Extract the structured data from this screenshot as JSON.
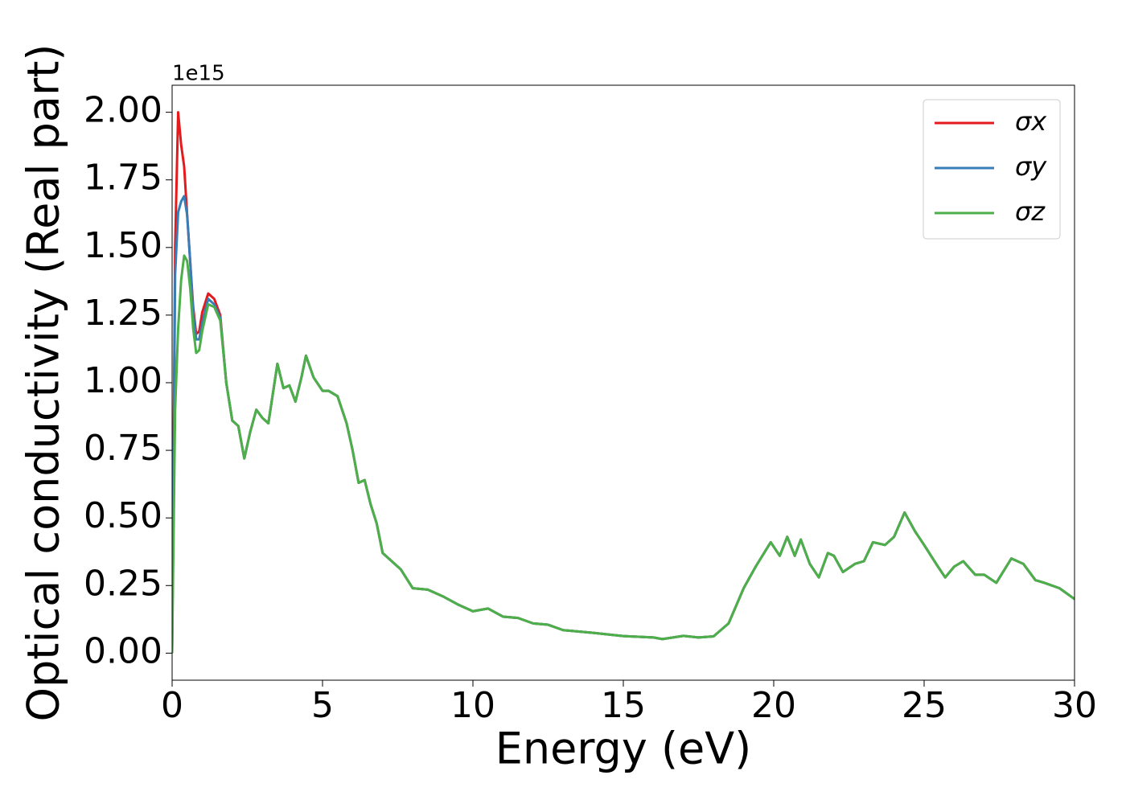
{
  "chart_data": {
    "type": "line",
    "x_label": "Energy (eV)",
    "y_label": "Optical conductivity (Real part)",
    "y_offset_label": "1e15",
    "x": [
      0,
      0.1,
      0.2,
      0.3,
      0.4,
      0.5,
      0.6,
      0.7,
      0.8,
      0.9,
      1.0,
      1.2,
      1.4,
      1.6,
      1.8,
      2.0,
      2.2,
      2.4,
      2.6,
      2.8,
      3.0,
      3.2,
      3.5,
      3.7,
      3.9,
      4.1,
      4.3,
      4.45,
      4.7,
      5.0,
      5.2,
      5.5,
      5.8,
      6.0,
      6.2,
      6.4,
      6.6,
      6.8,
      7.0,
      7.3,
      7.6,
      8.0,
      8.5,
      9.0,
      9.5,
      10.0,
      10.5,
      11.0,
      11.5,
      12.0,
      12.5,
      13.0,
      14.0,
      15.0,
      16.0,
      16.3,
      17.0,
      17.5,
      18.0,
      18.5,
      19.0,
      19.4,
      19.9,
      20.2,
      20.45,
      20.7,
      20.9,
      21.2,
      21.5,
      21.8,
      22.0,
      22.3,
      22.7,
      23.0,
      23.3,
      23.7,
      24.0,
      24.35,
      24.7,
      25.0,
      25.4,
      25.7,
      26.0,
      26.3,
      26.7,
      27.0,
      27.4,
      27.9,
      28.3,
      28.7,
      29.0,
      29.5,
      30.0
    ],
    "series": [
      {
        "name": "σx",
        "color": "#e41a1c",
        "values": [
          0,
          1.5,
          2.0,
          1.88,
          1.8,
          1.62,
          1.45,
          1.28,
          1.18,
          1.19,
          1.26,
          1.33,
          1.31,
          1.25,
          1.0,
          0.86,
          0.84,
          0.72,
          0.82,
          0.9,
          0.87,
          0.85,
          1.07,
          0.98,
          0.99,
          0.93,
          1.02,
          1.1,
          1.02,
          0.97,
          0.97,
          0.95,
          0.85,
          0.75,
          0.63,
          0.64,
          0.55,
          0.48,
          0.37,
          0.34,
          0.31,
          0.24,
          0.235,
          0.21,
          0.18,
          0.155,
          0.165,
          0.135,
          0.13,
          0.11,
          0.105,
          0.085,
          0.075,
          0.063,
          0.058,
          0.052,
          0.064,
          0.058,
          0.062,
          0.11,
          0.24,
          0.32,
          0.41,
          0.36,
          0.43,
          0.36,
          0.42,
          0.33,
          0.28,
          0.37,
          0.36,
          0.3,
          0.33,
          0.34,
          0.41,
          0.4,
          0.43,
          0.52,
          0.45,
          0.4,
          0.33,
          0.28,
          0.32,
          0.34,
          0.29,
          0.29,
          0.26,
          0.35,
          0.33,
          0.27,
          0.26,
          0.24,
          0.2
        ]
      },
      {
        "name": "σy",
        "color": "#377eb8",
        "values": [
          0,
          1.4,
          1.63,
          1.67,
          1.69,
          1.62,
          1.45,
          1.26,
          1.16,
          1.16,
          1.22,
          1.31,
          1.29,
          1.24,
          1.0,
          0.86,
          0.84,
          0.72,
          0.82,
          0.9,
          0.87,
          0.85,
          1.07,
          0.98,
          0.99,
          0.93,
          1.02,
          1.1,
          1.02,
          0.97,
          0.97,
          0.95,
          0.85,
          0.75,
          0.63,
          0.64,
          0.55,
          0.48,
          0.37,
          0.34,
          0.31,
          0.24,
          0.235,
          0.21,
          0.18,
          0.155,
          0.165,
          0.135,
          0.13,
          0.11,
          0.105,
          0.085,
          0.075,
          0.063,
          0.058,
          0.052,
          0.064,
          0.058,
          0.062,
          0.11,
          0.24,
          0.32,
          0.41,
          0.36,
          0.43,
          0.36,
          0.42,
          0.33,
          0.28,
          0.37,
          0.36,
          0.3,
          0.33,
          0.34,
          0.41,
          0.4,
          0.43,
          0.52,
          0.45,
          0.4,
          0.33,
          0.28,
          0.32,
          0.34,
          0.29,
          0.29,
          0.26,
          0.35,
          0.33,
          0.27,
          0.26,
          0.24,
          0.2
        ]
      },
      {
        "name": "σz",
        "color": "#4daf4a",
        "values": [
          0,
          0.9,
          1.2,
          1.38,
          1.47,
          1.45,
          1.35,
          1.2,
          1.11,
          1.12,
          1.19,
          1.29,
          1.28,
          1.23,
          1.0,
          0.86,
          0.84,
          0.72,
          0.82,
          0.9,
          0.87,
          0.85,
          1.07,
          0.98,
          0.99,
          0.93,
          1.02,
          1.1,
          1.02,
          0.97,
          0.97,
          0.95,
          0.85,
          0.75,
          0.63,
          0.64,
          0.55,
          0.48,
          0.37,
          0.34,
          0.31,
          0.24,
          0.235,
          0.21,
          0.18,
          0.155,
          0.165,
          0.135,
          0.13,
          0.11,
          0.105,
          0.085,
          0.075,
          0.063,
          0.058,
          0.052,
          0.064,
          0.058,
          0.062,
          0.11,
          0.24,
          0.32,
          0.41,
          0.36,
          0.43,
          0.36,
          0.42,
          0.33,
          0.28,
          0.37,
          0.36,
          0.3,
          0.33,
          0.34,
          0.41,
          0.4,
          0.43,
          0.52,
          0.45,
          0.4,
          0.33,
          0.28,
          0.32,
          0.34,
          0.29,
          0.29,
          0.26,
          0.35,
          0.33,
          0.27,
          0.26,
          0.24,
          0.2
        ]
      }
    ],
    "xlim": [
      0,
      30
    ],
    "xticks": [
      0,
      5,
      10,
      15,
      20,
      25,
      30
    ],
    "ylim": [
      -0.1,
      2.1
    ],
    "yticks": [
      {
        "value": 0,
        "label": "0.00"
      },
      {
        "value": 0.25,
        "label": "0.25"
      },
      {
        "value": 0.5,
        "label": "0.50"
      },
      {
        "value": 0.75,
        "label": "0.75"
      },
      {
        "value": 1,
        "label": "1.00"
      },
      {
        "value": 1.25,
        "label": "1.25"
      },
      {
        "value": 1.5,
        "label": "1.50"
      },
      {
        "value": 1.75,
        "label": "1.75"
      },
      {
        "value": 2,
        "label": "2.00"
      }
    ],
    "grid": false,
    "legend": "upper right"
  }
}
